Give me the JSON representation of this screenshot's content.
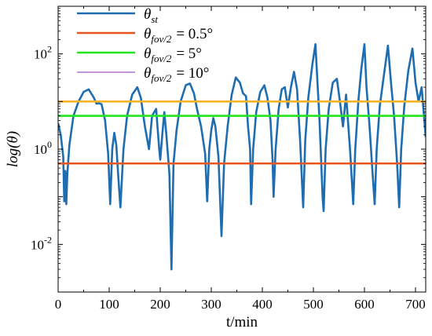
{
  "chart_data": {
    "type": "line",
    "xlabel": "t/min",
    "ylabel": "log(θ)",
    "xlim": [
      0,
      720
    ],
    "ylim": [
      0.001,
      1000
    ],
    "yscale": "log",
    "x_ticks": [
      0,
      100,
      200,
      300,
      400,
      500,
      600,
      700
    ],
    "x_tick_labels": [
      "0",
      "100",
      "200",
      "300",
      "400",
      "500",
      "600",
      "700"
    ],
    "y_ticks": [
      0.01,
      1,
      100
    ],
    "y_tick_labels": [
      {
        "base": "10",
        "exp": "-2"
      },
      {
        "base": "10",
        "exp": "0"
      },
      {
        "base": "10",
        "exp": "2"
      }
    ],
    "grid": false,
    "legend_position": "top-left",
    "series": [
      {
        "name": "θ_st",
        "legend_main": "θ",
        "legend_sub": "st",
        "legend_rhs": "",
        "color": "#1f6db1",
        "kind": "curve",
        "points": [
          [
            0,
            3.5
          ],
          [
            5,
            2.0
          ],
          [
            10,
            0.7
          ],
          [
            12,
            0.08
          ],
          [
            14,
            0.35
          ],
          [
            16,
            0.07
          ],
          [
            18,
            0.3
          ],
          [
            22,
            1.2
          ],
          [
            30,
            5.0
          ],
          [
            40,
            10.0
          ],
          [
            50,
            16.0
          ],
          [
            60,
            18.0
          ],
          [
            70,
            12.0
          ],
          [
            75,
            9.0
          ],
          [
            80,
            9.2
          ],
          [
            85,
            8.8
          ],
          [
            92,
            4.0
          ],
          [
            98,
            0.8
          ],
          [
            102,
            0.07
          ],
          [
            106,
            1.0
          ],
          [
            110,
            2.2
          ],
          [
            114,
            1.2
          ],
          [
            118,
            0.25
          ],
          [
            122,
            0.06
          ],
          [
            128,
            1.0
          ],
          [
            135,
            5.0
          ],
          [
            145,
            14.0
          ],
          [
            155,
            20.0
          ],
          [
            162,
            12.0
          ],
          [
            170,
            3.0
          ],
          [
            178,
            1.0
          ],
          [
            184,
            5.0
          ],
          [
            192,
            7.0
          ],
          [
            198,
            1.0
          ],
          [
            200,
            0.6
          ],
          [
            204,
            2.0
          ],
          [
            208,
            6.0
          ],
          [
            212,
            2.0
          ],
          [
            218,
            0.3
          ],
          [
            222,
            0.003
          ],
          [
            226,
            0.5
          ],
          [
            232,
            2.5
          ],
          [
            240,
            10.0
          ],
          [
            250,
            22.0
          ],
          [
            258,
            24.0
          ],
          [
            266,
            15.0
          ],
          [
            272,
            7.0
          ],
          [
            280,
            3.0
          ],
          [
            288,
            0.8
          ],
          [
            292,
            0.08
          ],
          [
            296,
            1.0
          ],
          [
            300,
            2.5
          ],
          [
            304,
            4.5
          ],
          [
            308,
            3.0
          ],
          [
            314,
            0.7
          ],
          [
            320,
            0.015
          ],
          [
            325,
            0.5
          ],
          [
            332,
            3.0
          ],
          [
            340,
            14.0
          ],
          [
            348,
            32.0
          ],
          [
            356,
            25.0
          ],
          [
            362,
            15.0
          ],
          [
            368,
            13.0
          ],
          [
            372,
            3.0
          ],
          [
            376,
            1.0
          ],
          [
            378,
            0.07
          ],
          [
            382,
            1.0
          ],
          [
            388,
            6.0
          ],
          [
            396,
            16.0
          ],
          [
            404,
            22.0
          ],
          [
            410,
            12.0
          ],
          [
            416,
            4.0
          ],
          [
            420,
            0.6
          ],
          [
            422,
            0.1
          ],
          [
            426,
            1.0
          ],
          [
            432,
            7.0
          ],
          [
            438,
            18.0
          ],
          [
            444,
            20.0
          ],
          [
            450,
            7.5
          ],
          [
            456,
            20.0
          ],
          [
            462,
            42.0
          ],
          [
            468,
            18.0
          ],
          [
            474,
            1.5
          ],
          [
            480,
            0.06
          ],
          [
            484,
            1.5
          ],
          [
            490,
            12.0
          ],
          [
            498,
            60.0
          ],
          [
            504,
            160.0
          ],
          [
            508,
            25.0
          ],
          [
            512,
            4.0
          ],
          [
            518,
            0.1
          ],
          [
            520,
            0.05
          ],
          [
            524,
            1.0
          ],
          [
            530,
            7.0
          ],
          [
            538,
            25.0
          ],
          [
            546,
            30.0
          ],
          [
            552,
            10.0
          ],
          [
            558,
            3.0
          ],
          [
            564,
            14.0
          ],
          [
            572,
            0.9
          ],
          [
            578,
            0.07
          ],
          [
            582,
            1.0
          ],
          [
            588,
            10.0
          ],
          [
            594,
            50.0
          ],
          [
            600,
            160.0
          ],
          [
            604,
            20.0
          ],
          [
            610,
            3.0
          ],
          [
            616,
            0.3
          ],
          [
            620,
            0.07
          ],
          [
            624,
            1.0
          ],
          [
            630,
            8.0
          ],
          [
            638,
            35.0
          ],
          [
            646,
            150.0
          ],
          [
            652,
            25.0
          ],
          [
            658,
            5.0
          ],
          [
            664,
            0.5
          ],
          [
            668,
            0.06
          ],
          [
            672,
            1.0
          ],
          [
            678,
            8.0
          ],
          [
            686,
            45.0
          ],
          [
            694,
            130.0
          ],
          [
            700,
            25.0
          ],
          [
            706,
            10.0
          ],
          [
            712,
            20.0
          ],
          [
            716,
            6.0
          ],
          [
            720,
            1.8
          ]
        ]
      },
      {
        "name": "θ_fov/2 = 0.5°",
        "legend_main": "θ",
        "legend_sub": "fov/2",
        "legend_rhs": "= 0.5°",
        "color": "#e8561f",
        "kind": "hline",
        "y": 0.5
      },
      {
        "name": "θ_fov/2 = 5°",
        "legend_main": "θ",
        "legend_sub": "fov/2",
        "legend_rhs": "= 5°",
        "color": "#22e51e",
        "kind": "hline",
        "y": 5
      },
      {
        "name": "θ_fov/2 = 10°",
        "legend_main": "θ",
        "legend_sub": "fov/2",
        "legend_rhs": "= 10°",
        "color": "#a055c8",
        "kind": "legend-only"
      },
      {
        "name": "",
        "legend_main": "",
        "legend_sub": "",
        "legend_rhs": "",
        "color": "#f5b325",
        "kind": "hline",
        "y": 10,
        "in_legend": false
      }
    ]
  }
}
